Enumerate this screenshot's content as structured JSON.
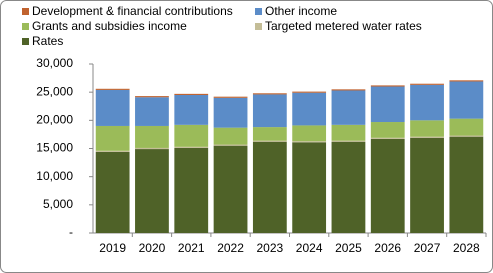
{
  "chart_data": {
    "type": "stacked_bar",
    "categories": [
      "2019",
      "2020",
      "2021",
      "2022",
      "2023",
      "2024",
      "2025",
      "2026",
      "2027",
      "2028"
    ],
    "series": [
      {
        "name": "Rates",
        "color": "#4f6228",
        "values": [
          14400,
          14900,
          15100,
          15500,
          16200,
          16100,
          16200,
          16700,
          16900,
          17100
        ]
      },
      {
        "name": "Targeted metered water rates",
        "color": "#c4bd97",
        "values": [
          200,
          200,
          200,
          200,
          200,
          200,
          200,
          200,
          200,
          200
        ]
      },
      {
        "name": "Grants and subsidies income",
        "color": "#9bbb59",
        "values": [
          4400,
          3900,
          3900,
          3000,
          2400,
          2800,
          2800,
          2800,
          2900,
          3000
        ]
      },
      {
        "name": "Other income",
        "color": "#5b8cc8",
        "values": [
          6400,
          5100,
          5300,
          5300,
          5800,
          5800,
          6100,
          6300,
          6300,
          6600
        ]
      },
      {
        "name": "Development & financial contributions",
        "color": "#c0622e",
        "values": [
          200,
          200,
          200,
          200,
          200,
          200,
          200,
          200,
          200,
          200
        ]
      }
    ],
    "ylim": [
      0,
      30000
    ],
    "yticks": [
      {
        "value": 0,
        "label": "-"
      },
      {
        "value": 5000,
        "label": "5,000"
      },
      {
        "value": 10000,
        "label": "10,000"
      },
      {
        "value": 15000,
        "label": "15,000"
      },
      {
        "value": 20000,
        "label": "20,000"
      },
      {
        "value": 25000,
        "label": "25,000"
      },
      {
        "value": 30000,
        "label": "30,000"
      }
    ],
    "grid": false
  }
}
